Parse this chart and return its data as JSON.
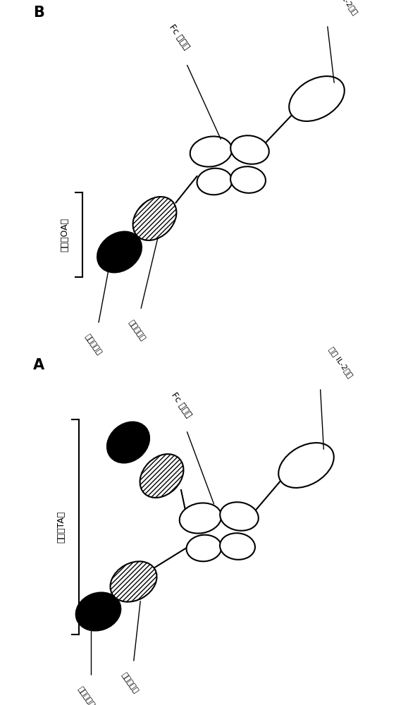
{
  "background_color": "#ffffff",
  "panel_A_label": "A",
  "panel_B_label": "B",
  "label_shuangbi": "双臂（TA）",
  "label_danbi": "单臂（OA）",
  "label_kebian": "可变结构域",
  "label_hending": "恒定结构域",
  "label_Fc": "Fc 结构域",
  "label_mutant_IL2": "变变 IL-2多肽"
}
